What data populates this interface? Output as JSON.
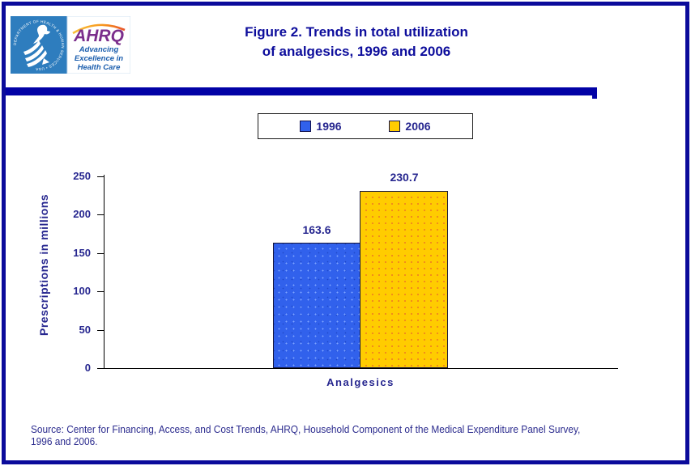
{
  "header": {
    "title_line1": "Figure 2. Trends in total utilization",
    "title_line2": "of analgesics, 1996 and 2006"
  },
  "logo": {
    "seal_text": "DEPARTMENT OF HEALTH & HUMAN SERVICES • USA",
    "ahrq_acronym": "AHRQ",
    "tagline_line1": "Advancing",
    "tagline_line2": "Excellence in",
    "tagline_line3": "Health Care"
  },
  "chart_data": {
    "type": "bar",
    "title": "Figure 2. Trends in total utilization of analgesics, 1996 and 2006",
    "categories": [
      "Analgesics"
    ],
    "series": [
      {
        "name": "1996",
        "values": [
          163.6
        ],
        "color": "#3161EC"
      },
      {
        "name": "2006",
        "values": [
          230.7
        ],
        "color": "#FFCC00"
      }
    ],
    "xlabel": "Analgesics",
    "ylabel": "Prescriptions in millions",
    "ylim": [
      0,
      250
    ],
    "yticks": [
      0,
      50,
      100,
      150,
      200,
      250
    ],
    "legend_position": "top",
    "grid": false
  },
  "footer": {
    "source_line1": "Source: Center for Financing, Access, and Cost Trends, AHRQ, Household Component of the Medical Expenditure Panel Survey,",
    "source_line2": "1996 and 2006."
  },
  "colors": {
    "page_border": "#0B0B9B",
    "separator_bar": "#0202A6",
    "title_text": "#0D0D9C",
    "chart_text": "#26268F",
    "bar_1996": "#3161EC",
    "bar_2006": "#FFCC00",
    "seal_background": "#2E7DBE",
    "ahrq_purple": "#7B2E8C",
    "tagline_blue": "#1A5DAD",
    "arc_orange": "#F7941D"
  }
}
